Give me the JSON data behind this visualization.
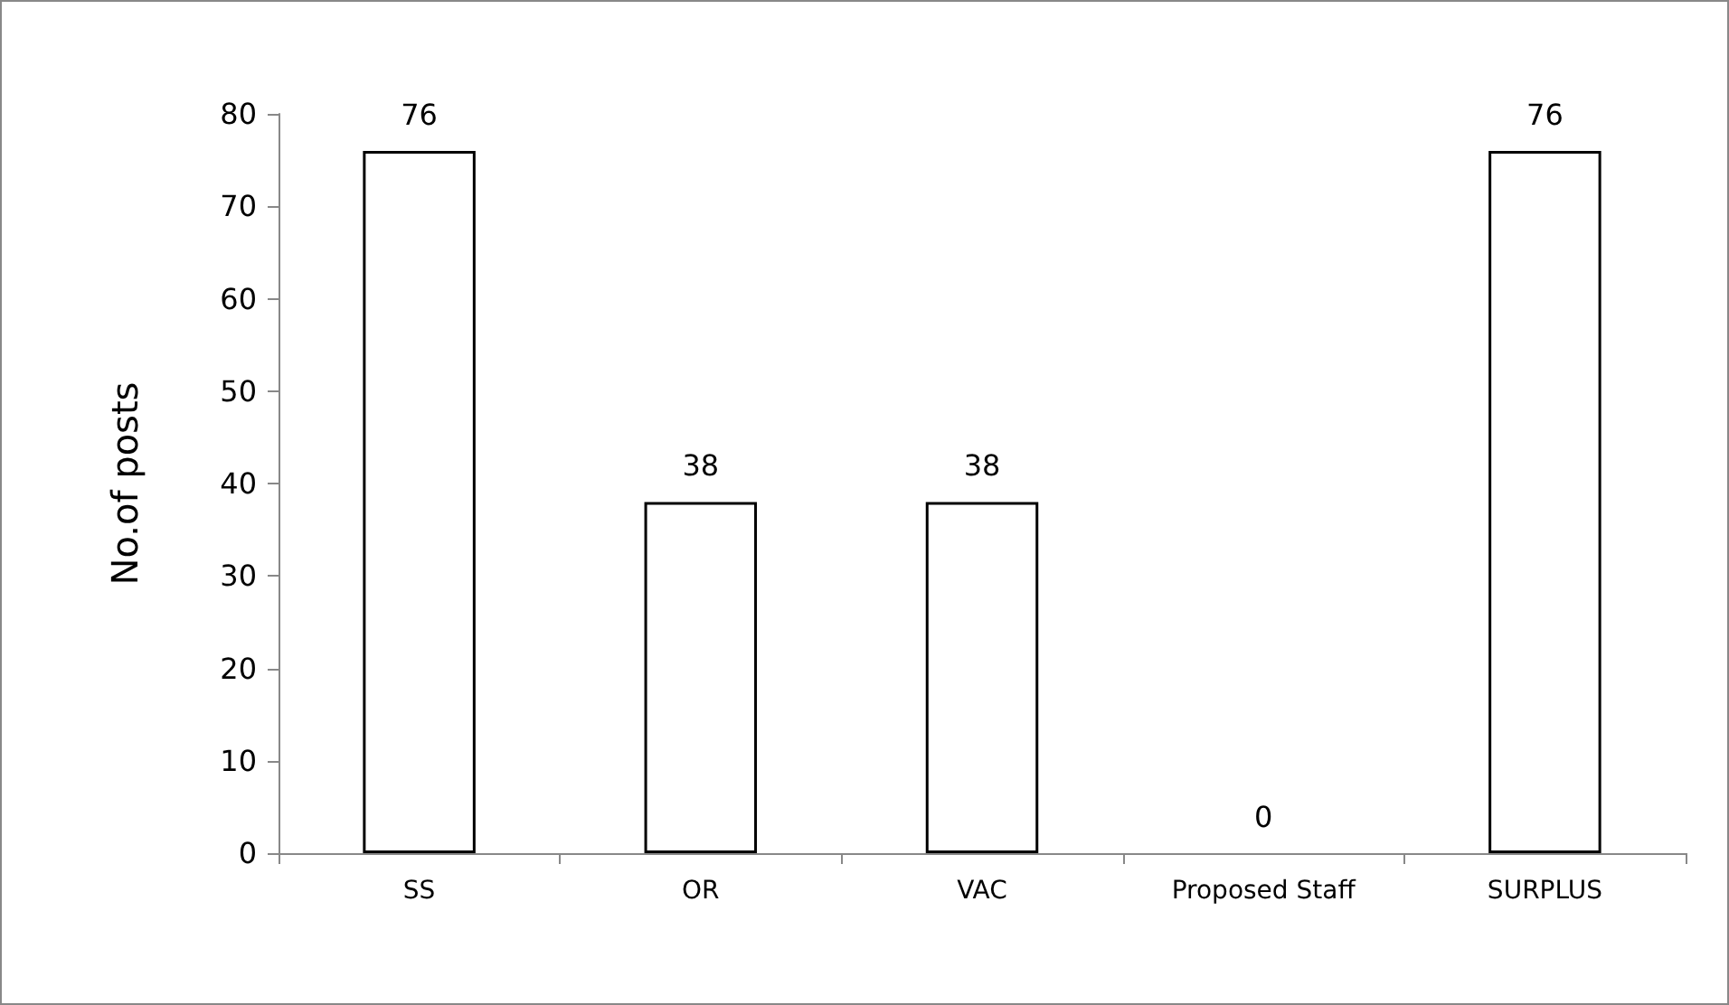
{
  "chart_data": {
    "type": "bar",
    "ylabel": "No.of posts",
    "categories": [
      "SS",
      "OR",
      "VAC",
      "Proposed Staff",
      "SURPLUS"
    ],
    "values": [
      76,
      38,
      38,
      0,
      76
    ],
    "color": "#ffffff",
    "ylim": [
      0,
      80
    ],
    "yticks": [
      0,
      10,
      20,
      30,
      40,
      50,
      60,
      70,
      80
    ],
    "data_labels": true,
    "grid": false
  }
}
